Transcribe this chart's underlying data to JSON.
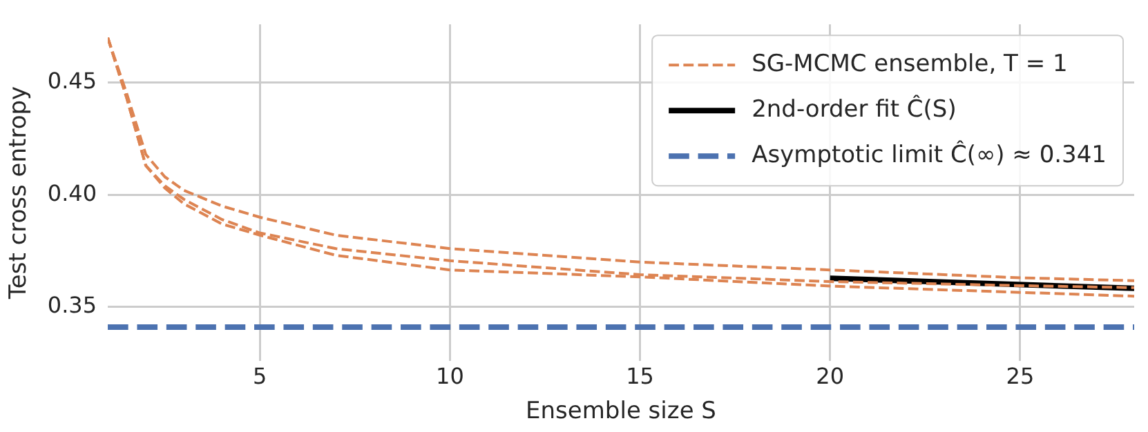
{
  "chart_data": {
    "type": "line",
    "xlabel": "Ensemble size S",
    "ylabel": "Test cross entropy",
    "xlim": [
      1,
      28
    ],
    "xticks": [
      5,
      10,
      15,
      20,
      25
    ],
    "ylim": [
      0.326,
      0.476
    ],
    "yticks": [
      {
        "value": 0.35,
        "label": "0.35"
      },
      {
        "value": 0.4,
        "label": "0.40"
      },
      {
        "value": 0.45,
        "label": "0.45"
      }
    ],
    "grid": true,
    "legend": "top right",
    "line_style": "dashed",
    "marker": "none",
    "series": [
      {
        "name": "SG-MCMC ensemble, T = 1",
        "color": "#dd8452",
        "x": [
          1,
          1.5,
          2,
          2.5,
          3,
          4,
          5,
          7,
          10,
          15,
          20,
          25,
          28
        ],
        "values": [
          0.47,
          0.445,
          0.418,
          0.408,
          0.402,
          0.395,
          0.39,
          0.382,
          0.376,
          0.37,
          0.3665,
          0.363,
          0.3617
        ]
      },
      {
        "color": "#dd8452",
        "x": [
          1,
          1.5,
          2,
          2.5,
          3,
          4,
          5,
          7,
          10,
          15,
          20,
          25,
          28
        ],
        "values": [
          0.47,
          0.443,
          0.413,
          0.404,
          0.398,
          0.389,
          0.383,
          0.376,
          0.3706,
          0.3644,
          0.3613,
          0.3595,
          0.3586
        ]
      },
      {
        "color": "#dd8452",
        "x": [
          1,
          1.5,
          2,
          2.5,
          3,
          4,
          5,
          7,
          10,
          15,
          20,
          25,
          28
        ],
        "values": [
          0.47,
          0.443,
          0.413,
          0.403,
          0.396,
          0.387,
          0.382,
          0.373,
          0.3665,
          0.3634,
          0.3593,
          0.3565,
          0.3548
        ]
      },
      {
        "name": "2nd-order fit Ĉ(S)",
        "color": "#000000",
        "line_style": "solid",
        "x": [
          20,
          28
        ],
        "values": [
          0.3628,
          0.3583
        ]
      }
    ],
    "ref_lines": [
      {
        "axis": "y",
        "value": 0.341,
        "label": "Asymptotic limit Ĉ(∞) ≈ 0.341",
        "color": "#4c72b0",
        "line_style": "dashed"
      }
    ]
  }
}
